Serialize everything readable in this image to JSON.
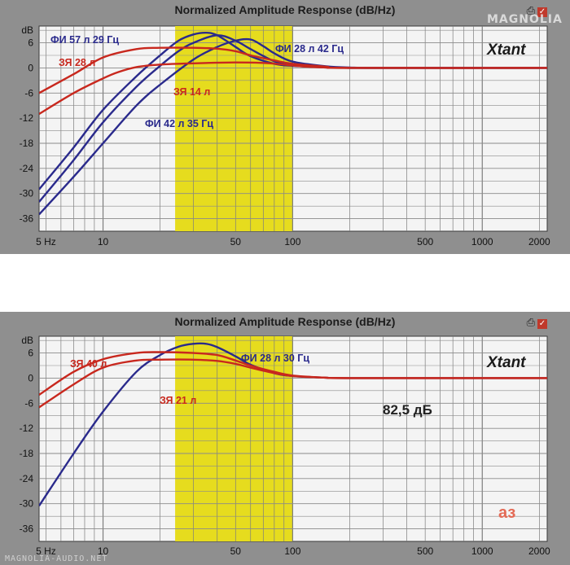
{
  "chart_data": [
    {
      "type": "line",
      "title": "Normalized Amplitude Response (dB/Hz)",
      "x_scale": "log",
      "xlim": [
        4.6,
        2200
      ],
      "ylim": [
        -39,
        10
      ],
      "x_ticks": [
        {
          "label": "5 Hz",
          "value": 5
        },
        {
          "label": "10",
          "value": 10
        },
        {
          "label": "50",
          "value": 50
        },
        {
          "label": "100",
          "value": 100
        },
        {
          "label": "500",
          "value": 500
        },
        {
          "label": "1000",
          "value": 1000
        },
        {
          "label": "2000",
          "value": 2000
        }
      ],
      "y_ticks": [
        {
          "label": "dB",
          "value": 9
        },
        {
          "label": "6",
          "value": 6
        },
        {
          "label": "0",
          "value": 0
        },
        {
          "label": "-6",
          "value": -6
        },
        {
          "label": "-12",
          "value": -12
        },
        {
          "label": "-18",
          "value": -18
        },
        {
          "label": "-24",
          "value": -24
        },
        {
          "label": "-30",
          "value": -30
        },
        {
          "label": "-36",
          "value": -36
        }
      ],
      "grid": true,
      "highlight_band": {
        "from": 24,
        "to": 100,
        "color": "#e6dc1e"
      },
      "brand": "Xtant",
      "series": [
        {
          "name": "ФИ 57 л 29 Гц",
          "color": "#2a2a8c",
          "x": [
            4.6,
            7,
            10,
            15,
            20,
            25,
            30,
            35,
            40,
            50,
            60,
            80,
            100,
            150,
            200,
            300,
            2200
          ],
          "y": [
            -29,
            -19,
            -10,
            -2,
            3,
            6.5,
            8,
            8.4,
            7.8,
            5,
            2.8,
            1,
            0.5,
            0.2,
            0,
            0,
            0
          ]
        },
        {
          "name": "ФИ 42 л 35 Гц",
          "color": "#2a2a8c",
          "x": [
            4.6,
            7,
            10,
            15,
            20,
            25,
            30,
            40,
            50,
            60,
            80,
            100,
            150,
            200,
            300,
            2200
          ],
          "y": [
            -32,
            -22,
            -13,
            -4.5,
            0.5,
            4,
            6,
            7.8,
            6.5,
            4.5,
            1.6,
            0.6,
            0.1,
            0,
            0,
            0
          ]
        },
        {
          "name": "ФИ 28 л 42 Гц",
          "color": "#2a2a8c",
          "x": [
            4.6,
            7,
            10,
            15,
            20,
            30,
            40,
            50,
            60,
            70,
            80,
            100,
            150,
            200,
            300,
            2200
          ],
          "y": [
            -35,
            -26,
            -18,
            -9,
            -4,
            2,
            5,
            6.5,
            6.8,
            5.2,
            3.5,
            1.5,
            0.4,
            0.1,
            0,
            0
          ]
        },
        {
          "name": "ЗЯ 28 л",
          "color": "#c8281e",
          "x": [
            4.6,
            7,
            10,
            15,
            20,
            30,
            40,
            50,
            60,
            80,
            100,
            150,
            200,
            2200
          ],
          "y": [
            -6,
            -1.5,
            2.5,
            4.5,
            4.8,
            4.8,
            4.6,
            4,
            3,
            1.8,
            1,
            0.3,
            0,
            0
          ]
        },
        {
          "name": "ЗЯ 14 л",
          "color": "#c8281e",
          "x": [
            4.6,
            7,
            10,
            12,
            15,
            20,
            30,
            50,
            70,
            90,
            110,
            150,
            200,
            2200
          ],
          "y": [
            -11,
            -6,
            -2.5,
            -1,
            0.2,
            0.8,
            1.1,
            1.3,
            1.2,
            0.8,
            0.4,
            0.1,
            0,
            0
          ]
        }
      ],
      "annotations": [
        {
          "text": "ФИ 57 л 29 Гц",
          "color": "#2a2a8c"
        },
        {
          "text": "ЗЯ 28 л",
          "color": "#c8281e"
        },
        {
          "text": "ФИ 28 л 42 Гц",
          "color": "#2a2a8c"
        },
        {
          "text": "ЗЯ 14 л",
          "color": "#c8281e"
        },
        {
          "text": "ФИ 42 л 35 Гц",
          "color": "#2a2a8c"
        }
      ]
    },
    {
      "type": "line",
      "title": "Normalized Amplitude Response (dB/Hz)",
      "x_scale": "log",
      "xlim": [
        4.6,
        2200
      ],
      "ylim": [
        -39,
        10
      ],
      "x_ticks": [
        {
          "label": "5 Hz",
          "value": 5
        },
        {
          "label": "10",
          "value": 10
        },
        {
          "label": "50",
          "value": 50
        },
        {
          "label": "100",
          "value": 100
        },
        {
          "label": "500",
          "value": 500
        },
        {
          "label": "1000",
          "value": 1000
        },
        {
          "label": "2000",
          "value": 2000
        }
      ],
      "y_ticks": [
        {
          "label": "dB",
          "value": 9
        },
        {
          "label": "6",
          "value": 6
        },
        {
          "label": "0",
          "value": 0
        },
        {
          "label": "-6",
          "value": -6
        },
        {
          "label": "-12",
          "value": -12
        },
        {
          "label": "-18",
          "value": -18
        },
        {
          "label": "-24",
          "value": -24
        },
        {
          "label": "-30",
          "value": -30
        },
        {
          "label": "-36",
          "value": -36
        }
      ],
      "grid": true,
      "highlight_band": {
        "from": 24,
        "to": 100,
        "color": "#e6dc1e"
      },
      "brand": "Xtant",
      "level_label": "82,5 дБ",
      "corner_mark": "аз",
      "series": [
        {
          "name": "ФИ 28 л 30 Гц",
          "color": "#2a2a8c",
          "x": [
            4.6,
            7,
            10,
            15,
            20,
            25,
            30,
            35,
            40,
            50,
            60,
            80,
            100,
            150,
            200,
            2200
          ],
          "y": [
            -30.5,
            -18,
            -8,
            1.5,
            5.5,
            7.5,
            8.2,
            8.2,
            7.4,
            5.2,
            3.2,
            1.2,
            0.5,
            0.1,
            0,
            0
          ]
        },
        {
          "name": "ЗЯ 40 л",
          "color": "#c8281e",
          "x": [
            4.6,
            7,
            10,
            15,
            20,
            30,
            40,
            50,
            60,
            80,
            100,
            150,
            200,
            2200
          ],
          "y": [
            -4,
            1.5,
            4.5,
            6,
            6.2,
            6,
            5.5,
            4.2,
            3,
            1.5,
            0.6,
            0.1,
            0,
            0
          ]
        },
        {
          "name": "ЗЯ 21 л",
          "color": "#c8281e",
          "x": [
            4.6,
            7,
            10,
            15,
            20,
            30,
            40,
            50,
            60,
            80,
            100,
            150,
            200,
            2200
          ],
          "y": [
            -7,
            -1.5,
            2.5,
            4.2,
            4.4,
            4.4,
            4.1,
            3.4,
            2.5,
            1.2,
            0.5,
            0.1,
            0,
            0
          ]
        }
      ],
      "annotations": [
        {
          "text": "ЗЯ 40 л",
          "color": "#c8281e"
        },
        {
          "text": "ФИ 28 л 30 Гц",
          "color": "#2a2a8c"
        },
        {
          "text": "ЗЯ 21 л",
          "color": "#c8281e"
        }
      ]
    }
  ],
  "watermarks": {
    "site_logo": "MAGNOLIA",
    "footer": "MAGNOLIA-AUDIO.NET"
  }
}
